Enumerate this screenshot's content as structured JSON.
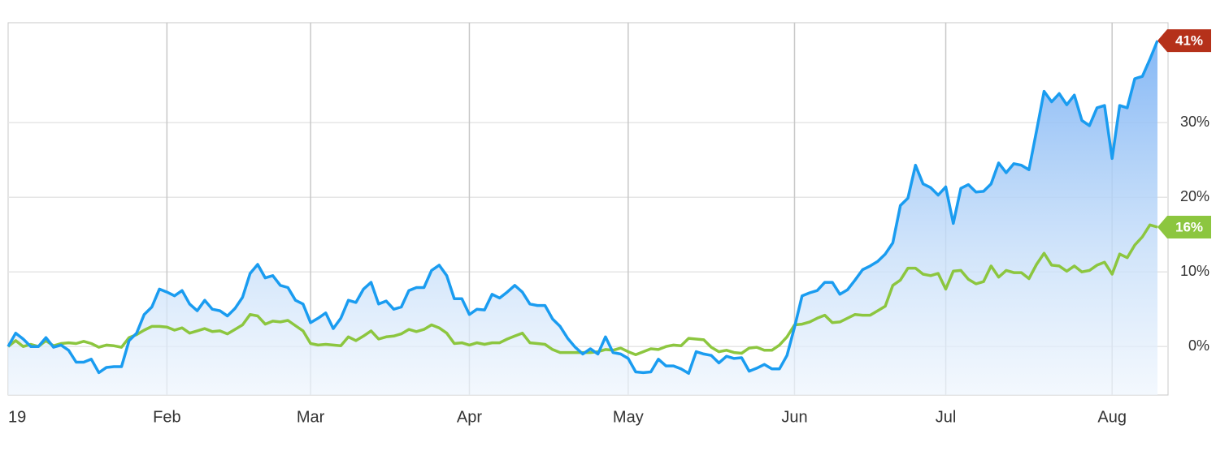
{
  "chart_data": {
    "type": "line",
    "categories": [
      "19",
      null,
      null,
      null,
      null,
      null,
      null,
      null,
      null,
      null,
      null,
      null,
      null,
      null,
      null,
      null,
      null,
      null,
      null,
      null,
      null,
      "Feb",
      null,
      null,
      null,
      null,
      null,
      null,
      null,
      null,
      null,
      null,
      null,
      null,
      null,
      null,
      null,
      null,
      null,
      null,
      "Mar",
      null,
      null,
      null,
      null,
      null,
      null,
      null,
      null,
      null,
      null,
      null,
      null,
      null,
      null,
      null,
      null,
      null,
      null,
      null,
      null,
      "Apr",
      null,
      null,
      null,
      null,
      null,
      null,
      null,
      null,
      null,
      null,
      null,
      null,
      null,
      null,
      null,
      null,
      null,
      null,
      null,
      null,
      "May",
      null,
      null,
      null,
      null,
      null,
      null,
      null,
      null,
      null,
      null,
      null,
      null,
      null,
      null,
      null,
      null,
      null,
      null,
      null,
      null,
      null,
      "Jun",
      null,
      null,
      null,
      null,
      null,
      null,
      null,
      null,
      null,
      null,
      null,
      null,
      null,
      null,
      null,
      null,
      null,
      null,
      null,
      "Jul",
      null,
      null,
      null,
      null,
      null,
      null,
      null,
      null,
      null,
      null,
      null,
      null,
      null,
      null,
      null,
      null,
      null,
      null,
      null,
      null,
      null,
      "Aug",
      null,
      null,
      null,
      null,
      null,
      null
    ],
    "series": [
      {
        "color": "#1a9cf0",
        "area": true,
        "end_label": "41%",
        "label_color": "#b5311a",
        "values": [
          0,
          1.8,
          1.0,
          0,
          0,
          1.2,
          -0.1,
          0.2,
          -0.5,
          -2.1,
          -2.1,
          -1.7,
          -3.5,
          -2.8,
          -2.7,
          -2.7,
          0.8,
          1.8,
          4.3,
          5.3,
          7.7,
          7.3,
          6.8,
          7.5,
          5.7,
          4.8,
          6.2,
          5.0,
          4.8,
          4.1,
          5.1,
          6.6,
          9.8,
          11.0,
          9.2,
          9.5,
          8.2,
          7.9,
          6.2,
          5.7,
          3.2,
          3.8,
          4.5,
          2.4,
          3.8,
          6.2,
          5.9,
          7.7,
          8.6,
          5.7,
          6.1,
          5.0,
          5.3,
          7.5,
          7.9,
          7.9,
          10.2,
          10.9,
          9.5,
          6.4,
          6.4,
          4.3,
          5.0,
          4.9,
          7.0,
          6.5,
          7.3,
          8.2,
          7.3,
          5.7,
          5.5,
          5.5,
          3.7,
          2.7,
          1.1,
          -0.1,
          -1.0,
          -0.3,
          -1.0,
          1.3,
          -0.8,
          -1.0,
          -1.6,
          -3.4,
          -3.5,
          -3.4,
          -1.7,
          -2.6,
          -2.6,
          -3.0,
          -3.6,
          -0.7,
          -1.0,
          -1.2,
          -2.2,
          -1.3,
          -1.6,
          -1.5,
          -3.3,
          -2.9,
          -2.4,
          -3.0,
          -3.0,
          -1.2,
          2.6,
          6.8,
          7.2,
          7.5,
          8.6,
          8.6,
          7.0,
          7.6,
          8.9,
          10.3,
          10.8,
          11.4,
          12.4,
          13.9,
          18.9,
          19.9,
          24.3,
          21.8,
          21.3,
          20.3,
          21.4,
          16.5,
          21.2,
          21.7,
          20.7,
          20.8,
          21.8,
          24.6,
          23.3,
          24.5,
          24.3,
          23.7,
          28.9,
          34.2,
          32.8,
          33.9,
          32.4,
          33.7,
          30.3,
          29.6,
          32.0,
          32.3,
          25.2,
          32.3,
          32.0,
          35.9,
          36.2,
          38.5,
          41
        ]
      },
      {
        "color": "#8cc63f",
        "area": false,
        "end_label": "16%",
        "label_color": "#8cc63f",
        "values": [
          0,
          0.8,
          0,
          0.3,
          0,
          0.8,
          0.1,
          0.4,
          0.5,
          0.4,
          0.7,
          0.4,
          -0.1,
          0.2,
          0.1,
          -0.1,
          1.2,
          1.6,
          2.2,
          2.7,
          2.7,
          2.6,
          2.2,
          2.5,
          1.8,
          2.1,
          2.4,
          2.0,
          2.1,
          1.7,
          2.3,
          2.9,
          4.3,
          4.1,
          3.0,
          3.4,
          3.3,
          3.5,
          2.8,
          2.1,
          0.4,
          0.2,
          0.3,
          0.2,
          0.1,
          1.3,
          0.8,
          1.4,
          2.1,
          1.0,
          1.3,
          1.4,
          1.7,
          2.3,
          2.0,
          2.3,
          2.9,
          2.5,
          1.8,
          0.4,
          0.5,
          0.2,
          0.5,
          0.3,
          0.5,
          0.5,
          1.0,
          1.4,
          1.8,
          0.5,
          0.4,
          0.3,
          -0.4,
          -0.8,
          -0.8,
          -0.8,
          -0.8,
          -0.8,
          -0.7,
          -0.4,
          -0.5,
          -0.2,
          -0.7,
          -1.1,
          -0.7,
          -0.3,
          -0.4,
          0,
          0.2,
          0.1,
          1.1,
          1.0,
          0.9,
          -0.1,
          -0.7,
          -0.5,
          -0.8,
          -0.9,
          -0.2,
          -0.1,
          -0.5,
          -0.5,
          0.2,
          1.3,
          2.9,
          3.0,
          3.3,
          3.8,
          4.2,
          3.2,
          3.3,
          3.8,
          4.3,
          4.2,
          4.2,
          4.8,
          5.4,
          8.2,
          8.9,
          10.5,
          10.5,
          9.7,
          9.5,
          9.8,
          7.7,
          10.1,
          10.2,
          9.0,
          8.4,
          8.7,
          10.8,
          9.3,
          10.2,
          9.9,
          9.9,
          9.1,
          11.0,
          12.5,
          10.9,
          10.8,
          10.1,
          10.8,
          10.0,
          10.2,
          10.9,
          11.3,
          9.7,
          12.4,
          11.9,
          13.6,
          14.7,
          16.3,
          16
        ]
      }
    ],
    "ylim": [
      -6.5,
      43.4
    ],
    "yticks": [
      {
        "value": 0,
        "label": "0%"
      },
      {
        "value": 10,
        "label": "10%"
      },
      {
        "value": 20,
        "label": "20%"
      },
      {
        "value": 30,
        "label": "30%"
      }
    ],
    "grid": true
  }
}
